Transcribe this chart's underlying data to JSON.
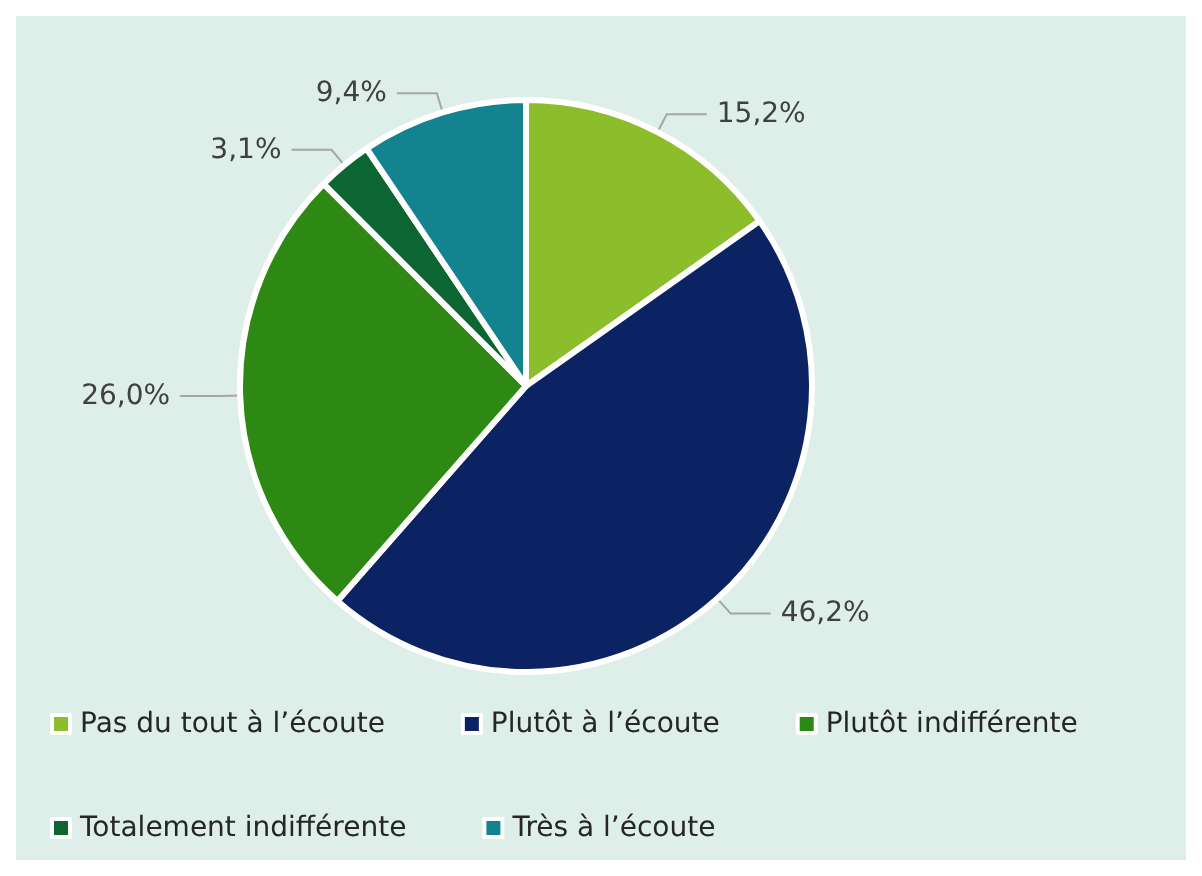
{
  "chart_data": {
    "type": "pie",
    "categories": [
      "Pas du tout à l’écoute",
      "Plutôt à l’écoute",
      "Plutôt indifférente",
      "Totalement indifférente",
      "Très à l’écoute"
    ],
    "values": [
      15.2,
      46.2,
      26.0,
      3.1,
      9.4
    ],
    "value_labels": [
      "15,2%",
      "46,2%",
      "26,0%",
      "3,1%",
      "9,4%"
    ],
    "colors": [
      "#8cbd2a",
      "#0b2263",
      "#2e8914",
      "#0b6632",
      "#13838f"
    ],
    "legend": "bottom"
  }
}
